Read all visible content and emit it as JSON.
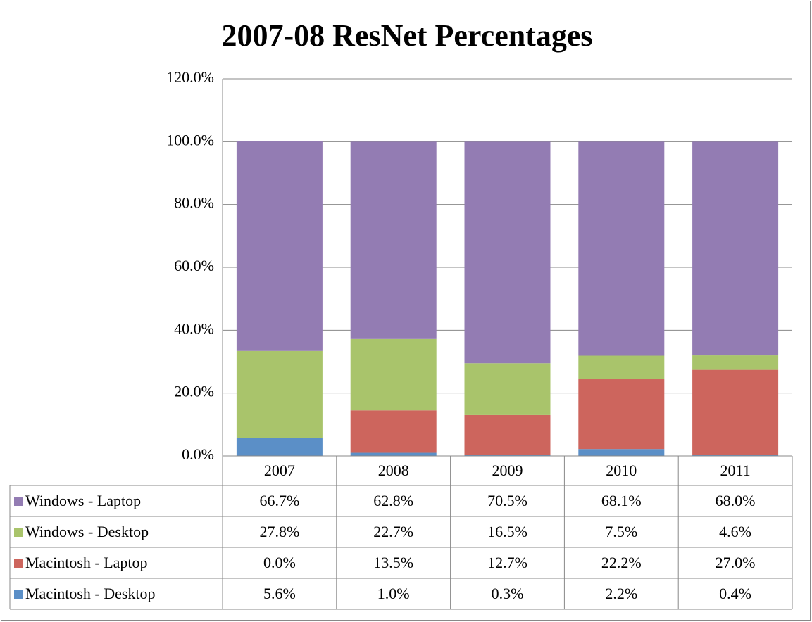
{
  "chart_data": {
    "type": "stacked_bar",
    "title": "2007-08 ResNet Percentages",
    "categories": [
      "2007",
      "2008",
      "2009",
      "2010",
      "2011"
    ],
    "series": [
      {
        "name": "Macintosh - Desktop",
        "color": "#5b8fc7",
        "values": [
          5.6,
          1.0,
          0.3,
          2.2,
          0.4
        ],
        "value_labels": [
          "5.6%",
          "1.0%",
          "0.3%",
          "2.2%",
          "0.4%"
        ]
      },
      {
        "name": "Macintosh - Laptop",
        "color": "#cd655d",
        "values": [
          0.0,
          13.5,
          12.7,
          22.2,
          27.0
        ],
        "value_labels": [
          "0.0%",
          "13.5%",
          "12.7%",
          "22.2%",
          "27.0%"
        ]
      },
      {
        "name": "Windows - Desktop",
        "color": "#a9c46b",
        "values": [
          27.8,
          22.7,
          16.5,
          7.5,
          4.6
        ],
        "value_labels": [
          "27.8%",
          "22.7%",
          "16.5%",
          "7.5%",
          "4.6%"
        ]
      },
      {
        "name": "Windows - Laptop",
        "color": "#937cb3",
        "values": [
          66.7,
          62.8,
          70.5,
          68.1,
          68.0
        ],
        "value_labels": [
          "66.7%",
          "62.8%",
          "70.5%",
          "68.1%",
          "68.0%"
        ]
      }
    ],
    "ylim": [
      0,
      120
    ],
    "yticks": [
      {
        "value": 0,
        "label": "0.0%"
      },
      {
        "value": 20,
        "label": "20.0%"
      },
      {
        "value": 40,
        "label": "40.0%"
      },
      {
        "value": 60,
        "label": "60.0%"
      },
      {
        "value": 80,
        "label": "80.0%"
      },
      {
        "value": 100,
        "label": "100.0%"
      },
      {
        "value": 120,
        "label": "120.0%"
      }
    ],
    "grid": true
  }
}
